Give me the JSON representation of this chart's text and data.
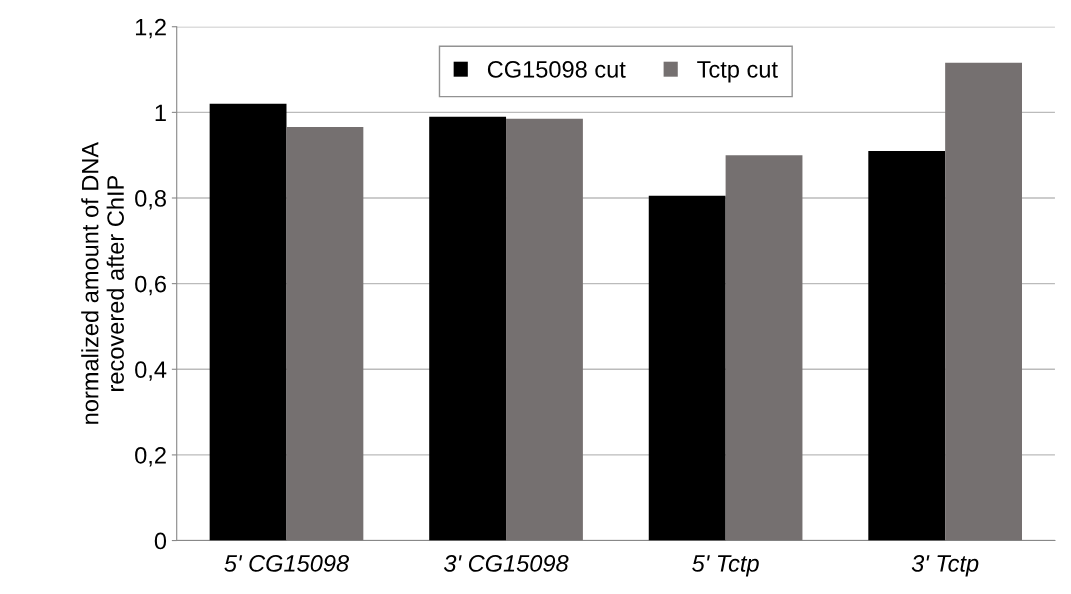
{
  "chart_data": {
    "type": "bar",
    "ylabel": "normalized amount of DNA\nrecovered after ChIP",
    "categories": [
      "5' CG15098",
      "3' CG15098",
      "5' Tctp",
      "3' Tctp"
    ],
    "series": [
      {
        "name": "CG15098 cut",
        "color": "#000000",
        "values": [
          1.02,
          0.99,
          0.805,
          0.91
        ]
      },
      {
        "name": "Tctp cut",
        "color": "#757070",
        "values": [
          0.966,
          0.985,
          0.9,
          1.116
        ]
      }
    ],
    "ylim": [
      0,
      1.2
    ],
    "yticks": [
      0,
      {
        "value": 0.2,
        "label": "0,2"
      },
      {
        "value": 0.4,
        "label": "0,4"
      },
      {
        "value": 0.6,
        "label": "0,6"
      },
      {
        "value": 0.8,
        "label": "0,8"
      },
      1,
      {
        "value": 1.2,
        "label": "1,2"
      }
    ],
    "grid": "y",
    "legend": "top"
  }
}
